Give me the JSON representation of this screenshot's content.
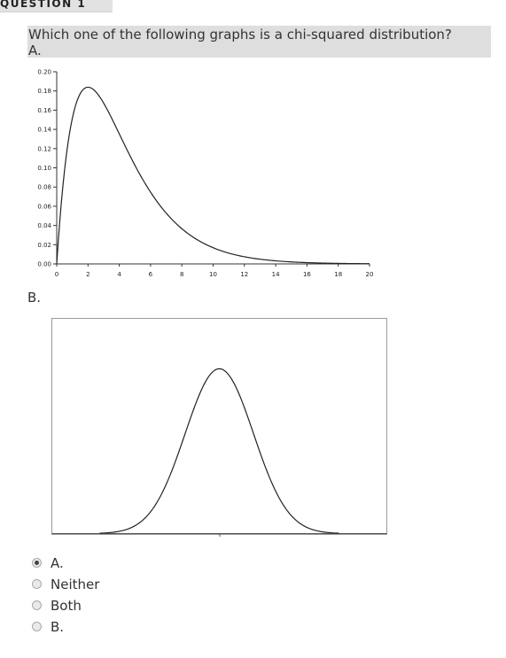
{
  "question": {
    "header": "QUESTION 1",
    "prompt": "Which one of the following graphs is a chi-squared distribution?",
    "label_a": "A.",
    "label_b": "B."
  },
  "chart_data": [
    {
      "type": "line",
      "x": [
        0,
        0.5,
        1,
        1.5,
        2,
        2.5,
        3,
        3.5,
        4,
        5,
        6,
        7,
        8,
        9,
        10,
        11,
        12,
        13,
        14,
        15,
        16,
        17,
        18,
        19,
        20
      ],
      "values": [
        0,
        0.0974,
        0.1516,
        0.1763,
        0.1839,
        0.1791,
        0.1673,
        0.1517,
        0.1353,
        0.1043,
        0.0775,
        0.0558,
        0.0392,
        0.0272,
        0.0182,
        0.0121,
        0.008,
        0.0052,
        0.0033,
        0.0021,
        0.0013,
        0.0008,
        0.0005,
        0.0003,
        0.0002
      ],
      "xlim": [
        0,
        20
      ],
      "ylim": [
        0,
        0.2
      ],
      "x_ticks": [
        "0",
        "2",
        "4",
        "6",
        "8",
        "10",
        "12",
        "14",
        "16",
        "18",
        "20"
      ],
      "y_ticks": [
        "0.00",
        "0.02",
        "0.04",
        "0.06",
        "0.08",
        "0.10",
        "0.12",
        "0.14",
        "0.16",
        "0.18",
        "0.20"
      ],
      "grid": false
    },
    {
      "type": "line",
      "x": [
        -3.5,
        -3.25,
        -3,
        -2.75,
        -2.5,
        -2.25,
        -2,
        -1.75,
        -1.5,
        -1.25,
        -1,
        -0.75,
        -0.5,
        -0.25,
        0,
        0.25,
        0.5,
        0.75,
        1,
        1.25,
        1.5,
        1.75,
        2,
        2.25,
        2.5,
        2.75,
        3,
        3.25,
        3.5
      ],
      "values": [
        0.0009,
        0.002,
        0.0044,
        0.0091,
        0.0175,
        0.0317,
        0.054,
        0.0863,
        0.1295,
        0.1826,
        0.242,
        0.3011,
        0.3521,
        0.3867,
        0.3989,
        0.3867,
        0.3521,
        0.3011,
        0.242,
        0.1826,
        0.1295,
        0.0863,
        0.054,
        0.0317,
        0.0175,
        0.0091,
        0.0044,
        0.002,
        0.0009
      ],
      "xlim": [
        -4.9,
        4.9
      ],
      "ylim": [
        0,
        0.5
      ],
      "grid": false
    }
  ],
  "options": [
    {
      "label": "A.",
      "checked": true
    },
    {
      "label": "Neither",
      "checked": false
    },
    {
      "label": "Both",
      "checked": false
    },
    {
      "label": "B.",
      "checked": false
    }
  ]
}
